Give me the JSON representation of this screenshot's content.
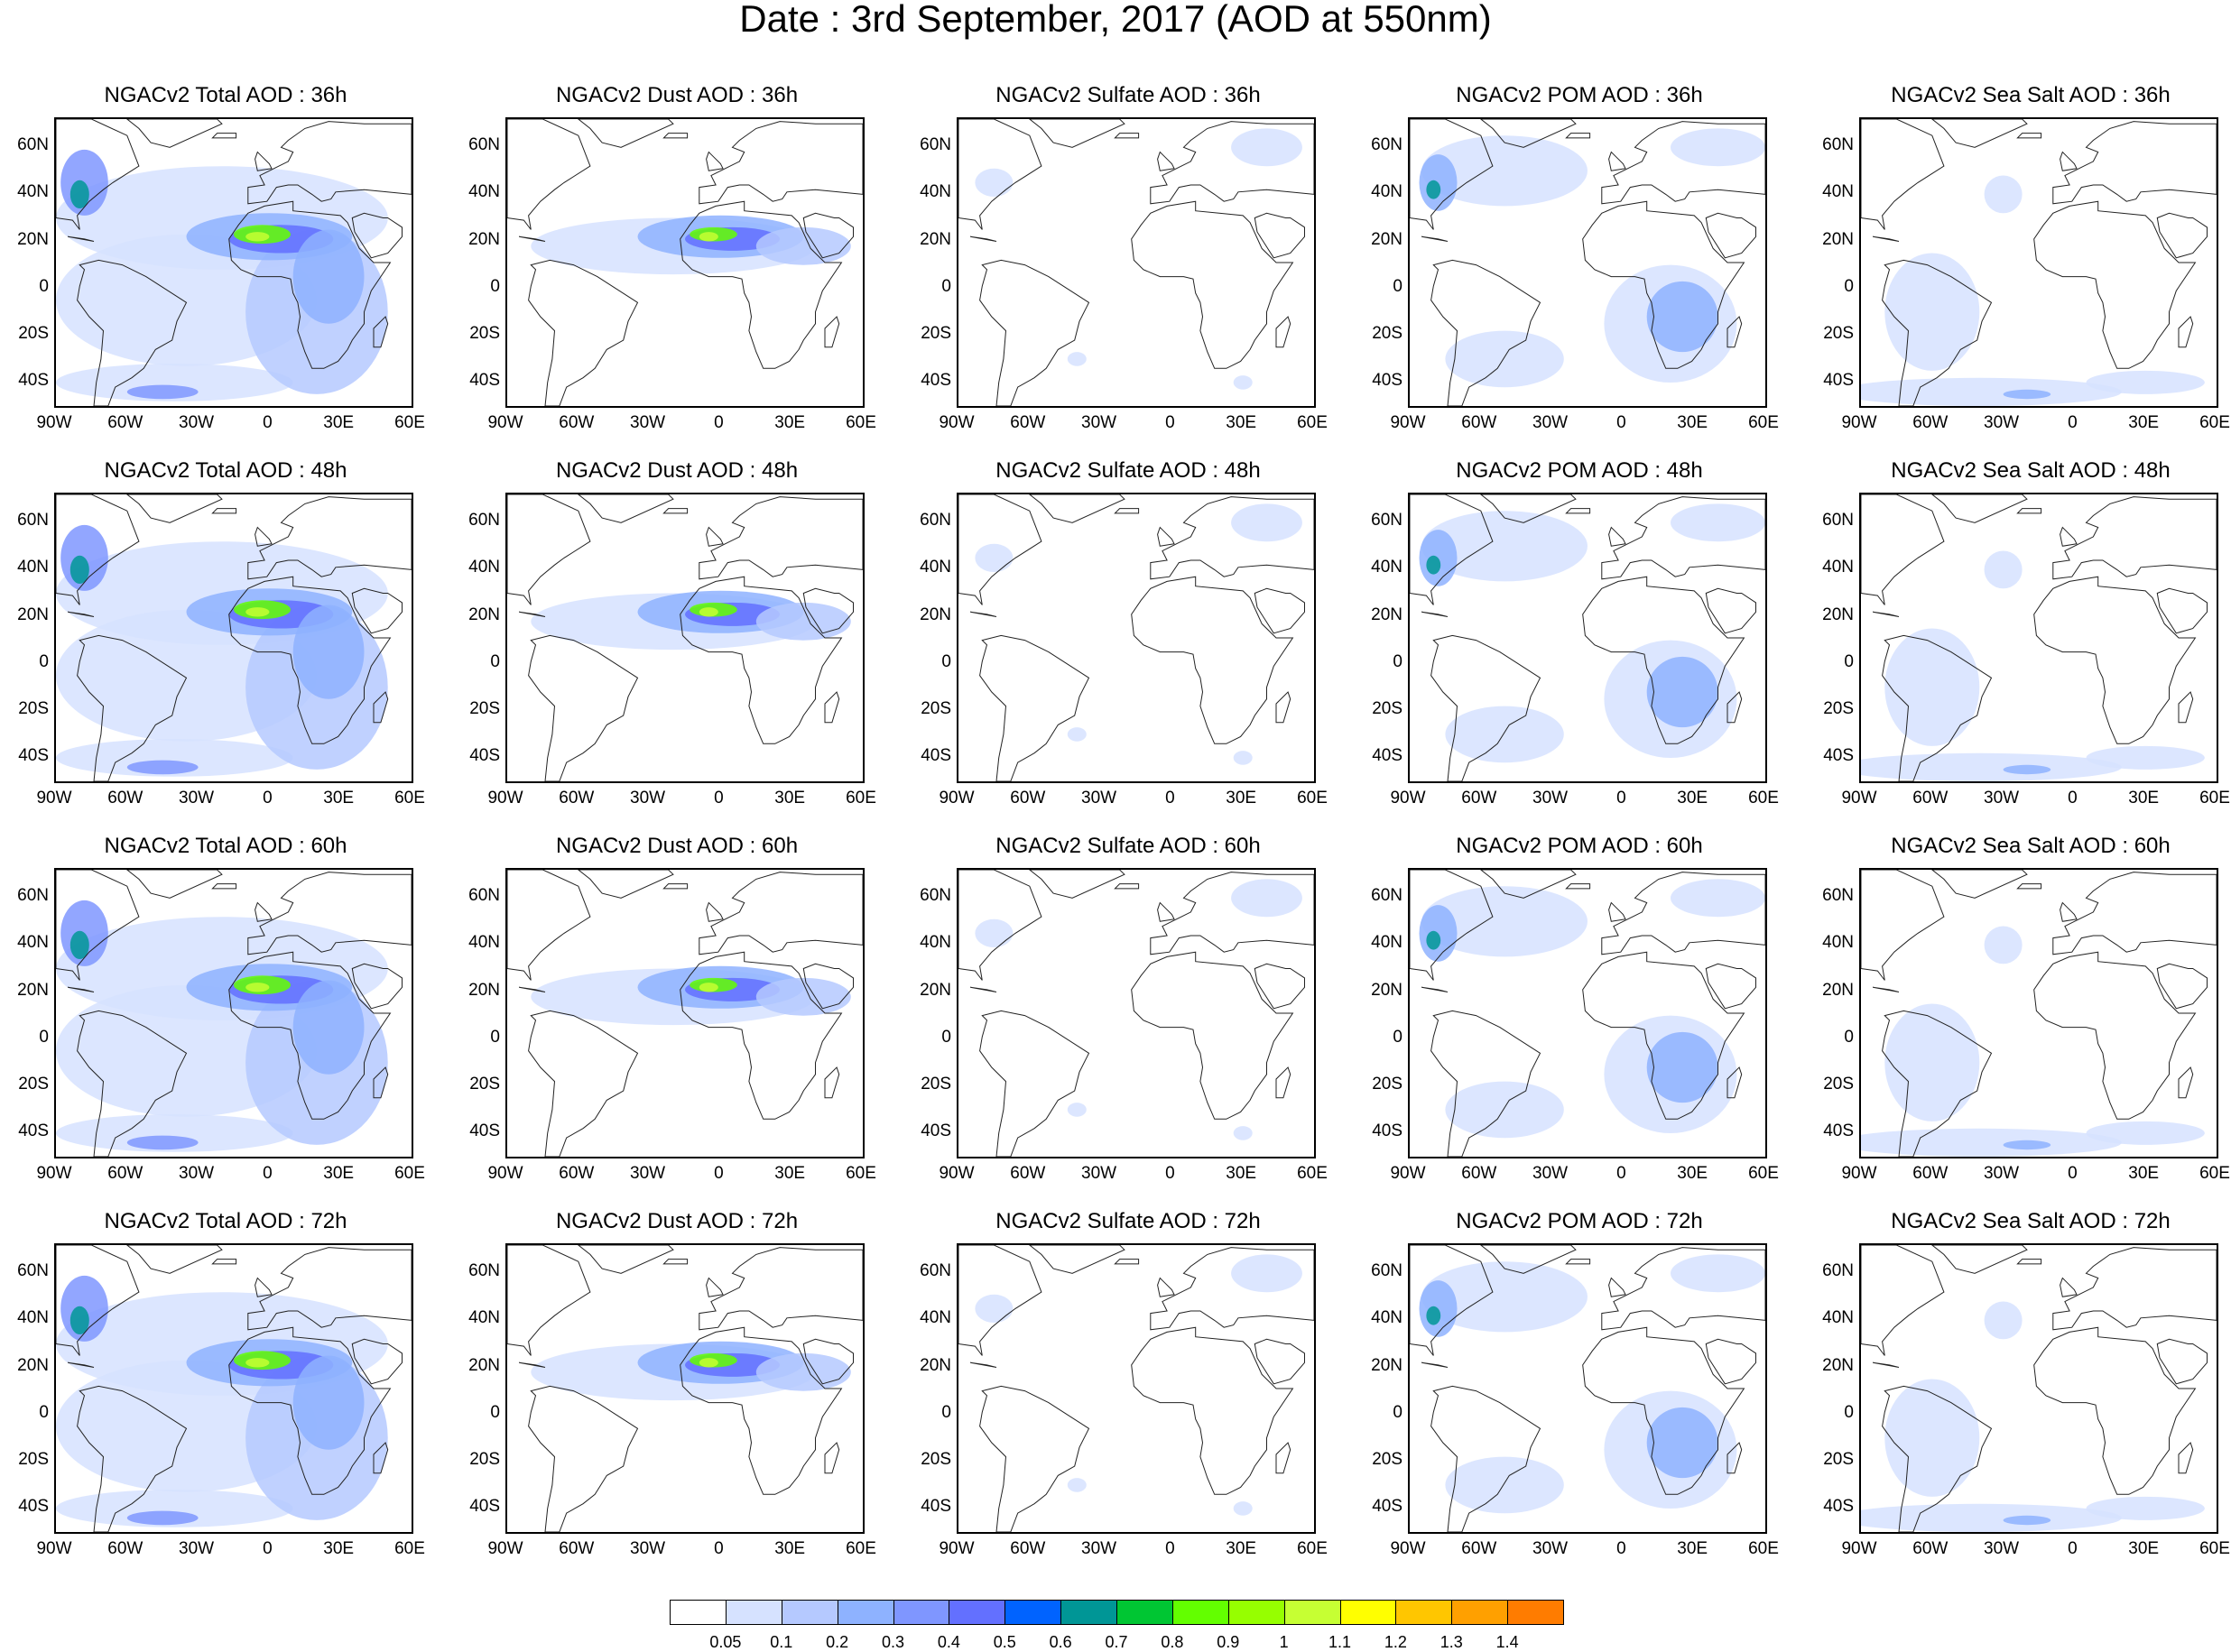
{
  "title": "Date : 3rd September, 2017 (AOD at 550nm)",
  "panels": [
    [
      "NGACv2 Total AOD : 36h",
      "NGACv2 Dust AOD : 36h",
      "NGACv2 Sulfate AOD : 36h",
      "NGACv2 POM AOD : 36h",
      "NGACv2 Sea Salt AOD : 36h"
    ],
    [
      "NGACv2 Total AOD : 48h",
      "NGACv2 Dust AOD : 48h",
      "NGACv2 Sulfate AOD : 48h",
      "NGACv2 POM AOD : 48h",
      "NGACv2 Sea Salt AOD : 48h"
    ],
    [
      "NGACv2 Total AOD : 60h",
      "NGACv2 Dust AOD : 60h",
      "NGACv2 Sulfate AOD : 60h",
      "NGACv2 POM AOD : 60h",
      "NGACv2 Sea Salt AOD : 60h"
    ],
    [
      "NGACv2 Total AOD : 72h",
      "NGACv2 Dust AOD : 72h",
      "NGACv2 Sulfate AOD : 72h",
      "NGACv2 POM AOD : 72h",
      "NGACv2 Sea Salt  AOD : 72h"
    ]
  ],
  "lat_labels": [
    "60N",
    "40N",
    "20N",
    "0",
    "20S",
    "40S"
  ],
  "lon_labels": [
    "90W",
    "60W",
    "30W",
    "0",
    "30E",
    "60E"
  ],
  "colorbar": {
    "labels": [
      "0.05",
      "0.1",
      "0.2",
      "0.3",
      "0.4",
      "0.5",
      "0.6",
      "0.7",
      "0.8",
      "0.9",
      "1",
      "1.1",
      "1.2",
      "1.3",
      "1.4"
    ],
    "colors": [
      "#ffffff",
      "#d6e2ff",
      "#b5c9ff",
      "#8eb2ff",
      "#7f96ff",
      "#6370ff",
      "#0063ff",
      "#009696",
      "#00c633",
      "#63ff00",
      "#96ff00",
      "#c6ff33",
      "#ffff00",
      "#ffc600",
      "#ffa000",
      "#ff7c00",
      "#ff1900"
    ]
  }
}
